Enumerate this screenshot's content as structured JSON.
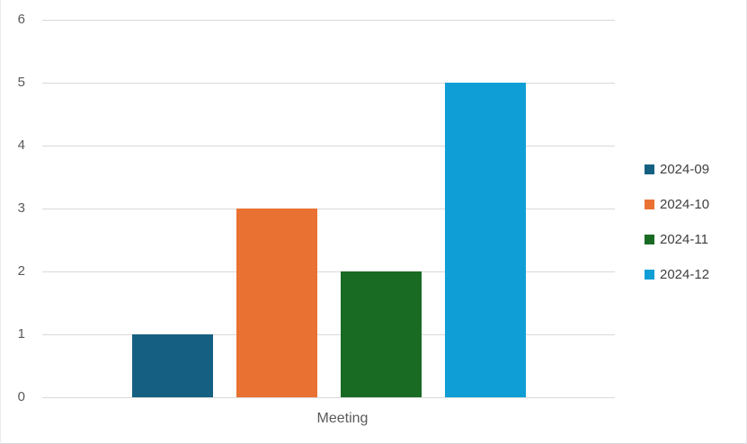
{
  "chart_data": {
    "type": "bar",
    "title": "",
    "categories": [
      "Meeting"
    ],
    "series": [
      {
        "name": "2024-09",
        "values": [
          1
        ],
        "color": "#156082"
      },
      {
        "name": "2024-10",
        "values": [
          3
        ],
        "color": "#E97132"
      },
      {
        "name": "2024-11",
        "values": [
          2
        ],
        "color": "#196B24"
      },
      {
        "name": "2024-12",
        "values": [
          5
        ],
        "color": "#0F9ED5"
      }
    ],
    "xlabel": "Meeting",
    "ylabel": "",
    "ylim": [
      0,
      6
    ],
    "ytick_interval": 1,
    "ytick_labels": [
      "0",
      "1",
      "2",
      "3",
      "4",
      "5",
      "6"
    ],
    "grid": true,
    "legend_position": "right"
  },
  "colors": {
    "background": "#FFFFFF",
    "gridline": "#D9D9D9",
    "axis_text": "#595959",
    "legend_text": "#404040"
  }
}
